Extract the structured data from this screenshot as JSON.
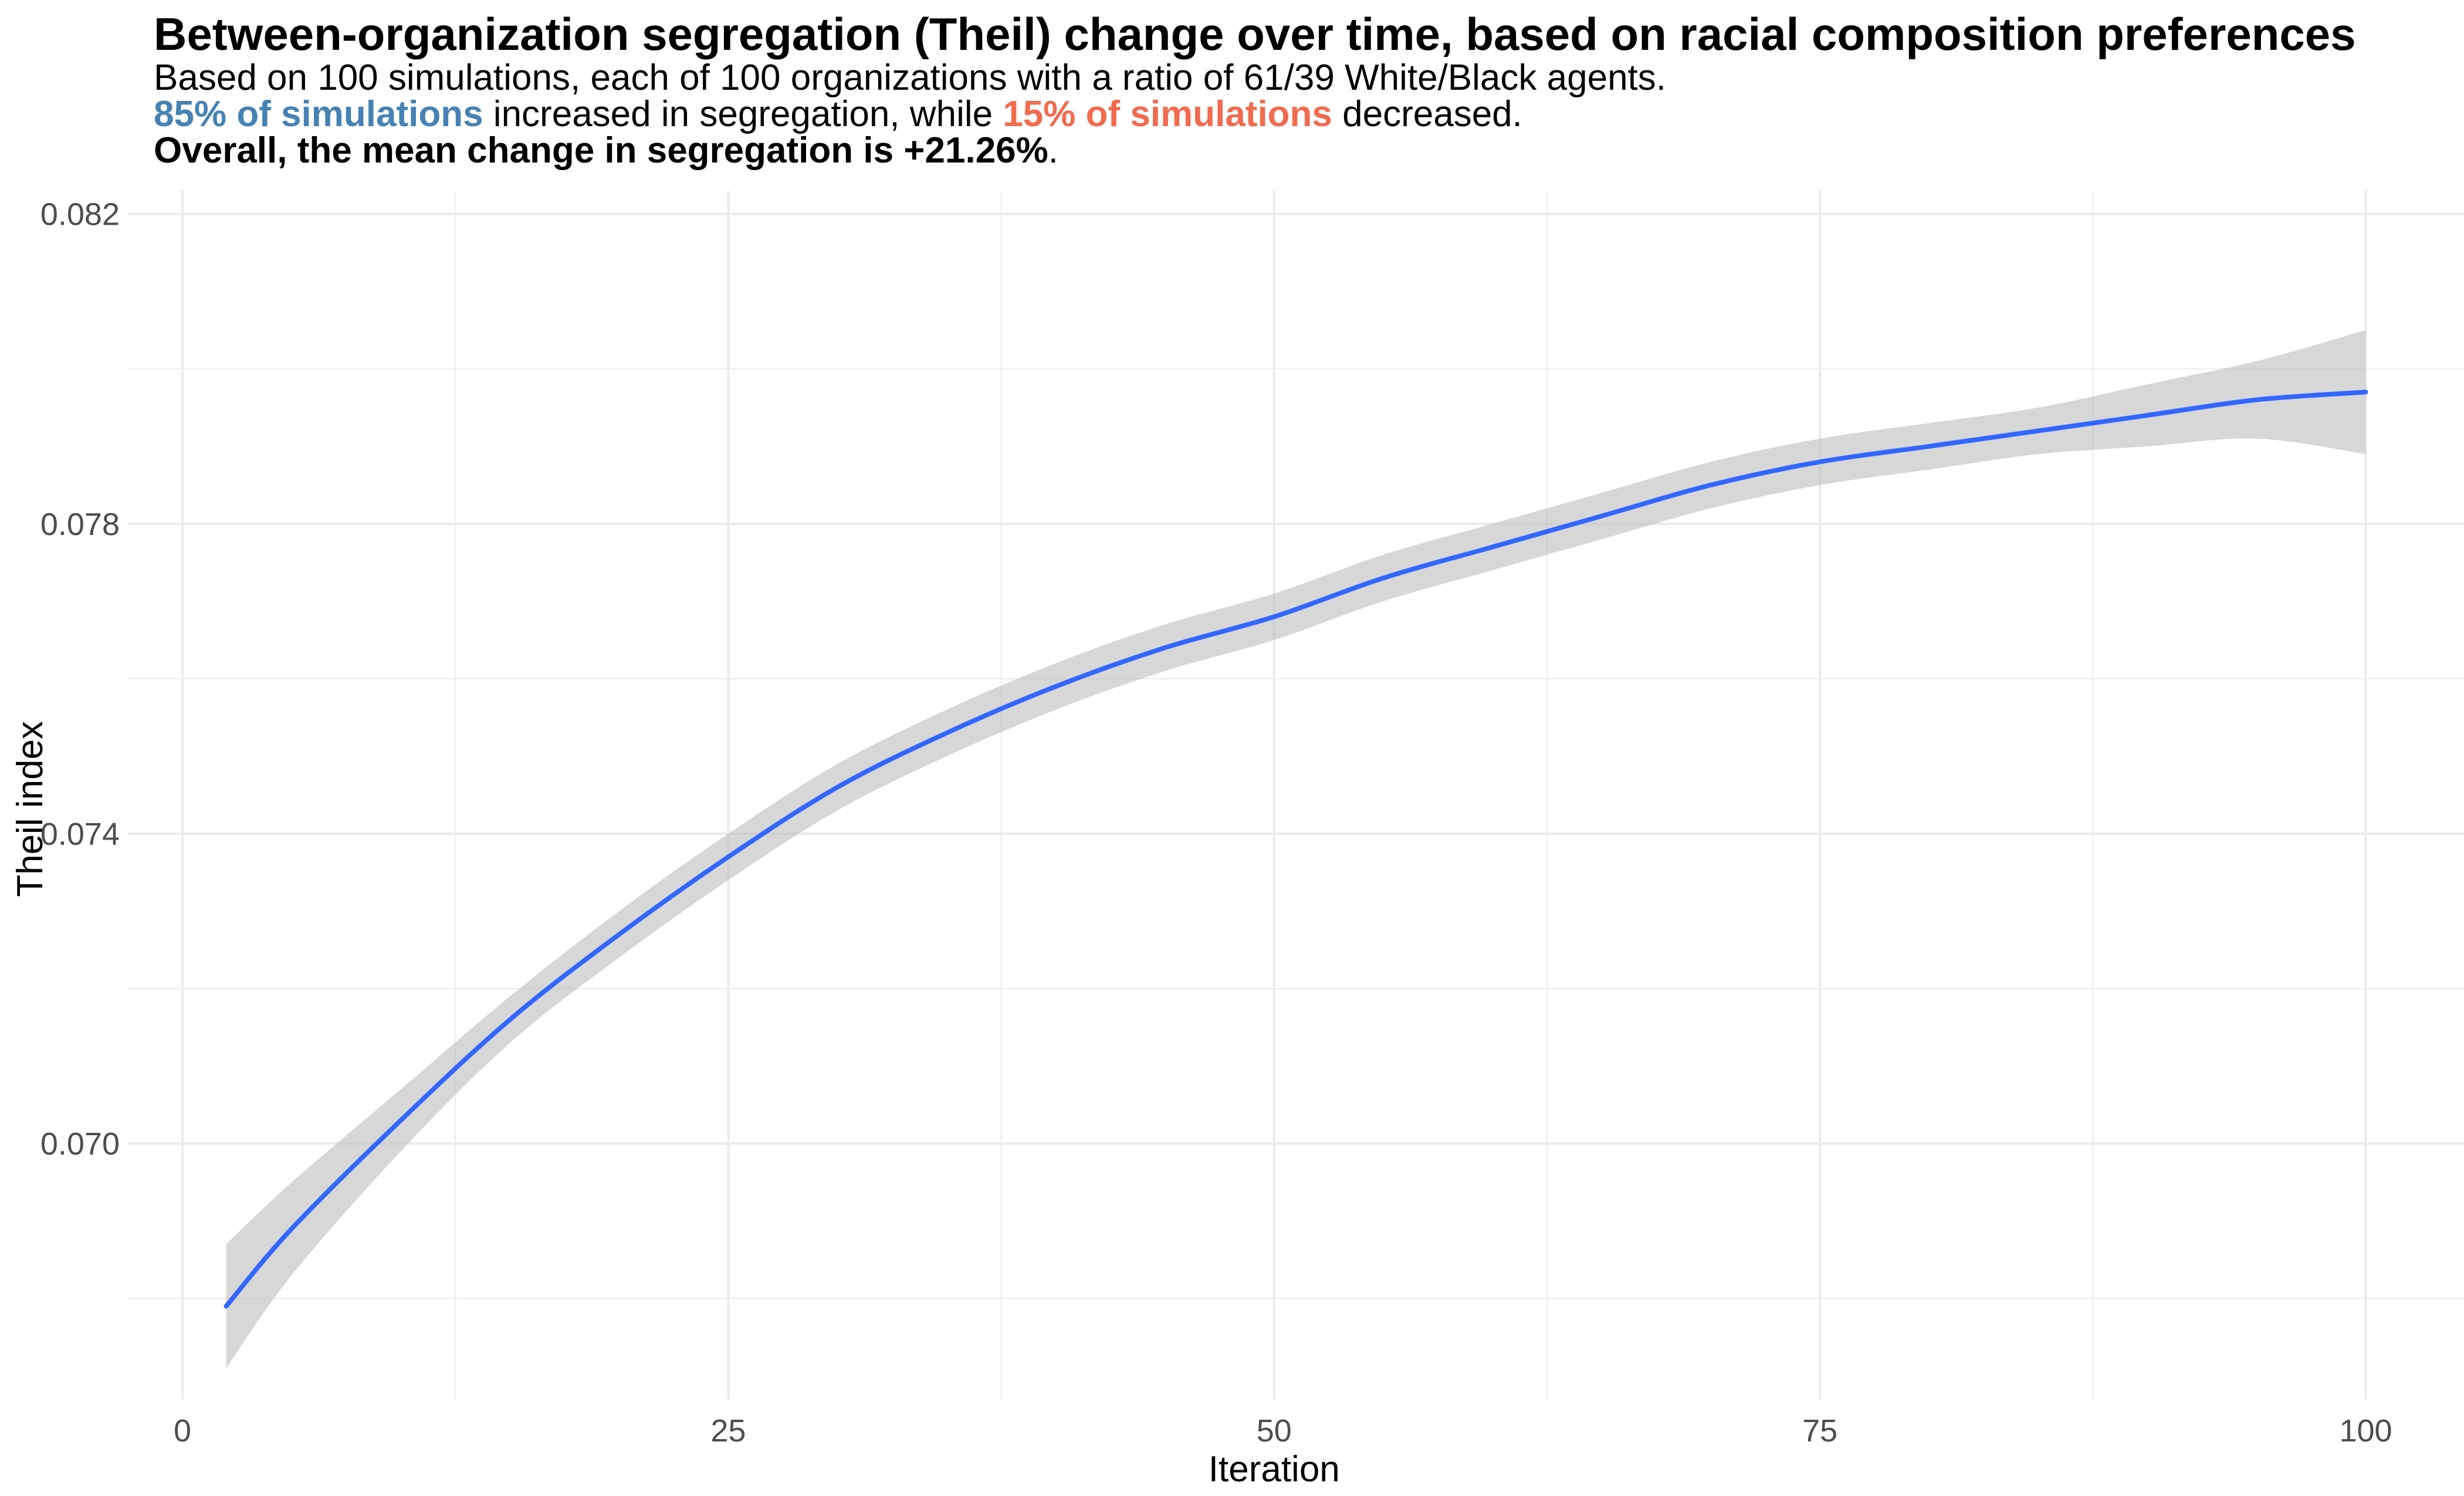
{
  "header": {
    "title": "Between-organization segregation (Theil) change over time, based on racial composition preferences",
    "subtitle_line1": "Based on 100 simulations, each of 100 organizations with a ratio of 61/39 White/Black agents.",
    "line2_highlight_increase": "85% of simulations",
    "line2_mid": " increased in segregation, while ",
    "line2_highlight_decrease": "15% of simulations",
    "line2_end": " decreased.",
    "line3_bold": "Overall, the mean change in segregation is +21.26%",
    "line3_end": "."
  },
  "colors": {
    "line": "#3366ff",
    "ribbon": "#bebebe",
    "increase_highlight": "#4682b4",
    "decrease_highlight": "#f26b4f",
    "grid": "#ebebeb"
  },
  "chart_data": {
    "type": "line",
    "xlabel": "Iteration",
    "ylabel": "Theil index",
    "xlim": [
      -2.5,
      104.5
    ],
    "ylim": [
      0.0667,
      0.0823
    ],
    "xticks": [
      0,
      25,
      50,
      75,
      100
    ],
    "xtick_labels": [
      "0",
      "25",
      "50",
      "75",
      "100"
    ],
    "yticks": [
      0.07,
      0.074,
      0.078,
      0.082
    ],
    "ytick_labels": [
      "0.070",
      "0.074",
      "0.078",
      "0.082"
    ],
    "grid": true,
    "legend": "none",
    "series": [
      {
        "style": "loess smooth with confidence band",
        "x": [
          2,
          5,
          10,
          15,
          20,
          25,
          30,
          35,
          40,
          45,
          50,
          55,
          60,
          65,
          70,
          75,
          80,
          85,
          90,
          95,
          100
        ],
        "y": [
          0.0679,
          0.0689,
          0.0703,
          0.0716,
          0.0727,
          0.0737,
          0.0746,
          0.0753,
          0.0759,
          0.0764,
          0.0768,
          0.0773,
          0.0777,
          0.0781,
          0.0785,
          0.0788,
          0.079,
          0.0792,
          0.0794,
          0.0796,
          0.0797
        ],
        "lower": [
          0.0671,
          0.0683,
          0.0699,
          0.0713,
          0.0724,
          0.0734,
          0.0743,
          0.075,
          0.0756,
          0.0761,
          0.0765,
          0.077,
          0.0774,
          0.0778,
          0.0782,
          0.0785,
          0.0787,
          0.0789,
          0.079,
          0.0791,
          0.0789
        ],
        "upper": [
          0.0687,
          0.0695,
          0.0707,
          0.0719,
          0.073,
          0.074,
          0.0749,
          0.0756,
          0.0762,
          0.0767,
          0.0771,
          0.0776,
          0.078,
          0.0784,
          0.0788,
          0.0791,
          0.0793,
          0.0795,
          0.0798,
          0.0801,
          0.0805
        ]
      }
    ]
  }
}
